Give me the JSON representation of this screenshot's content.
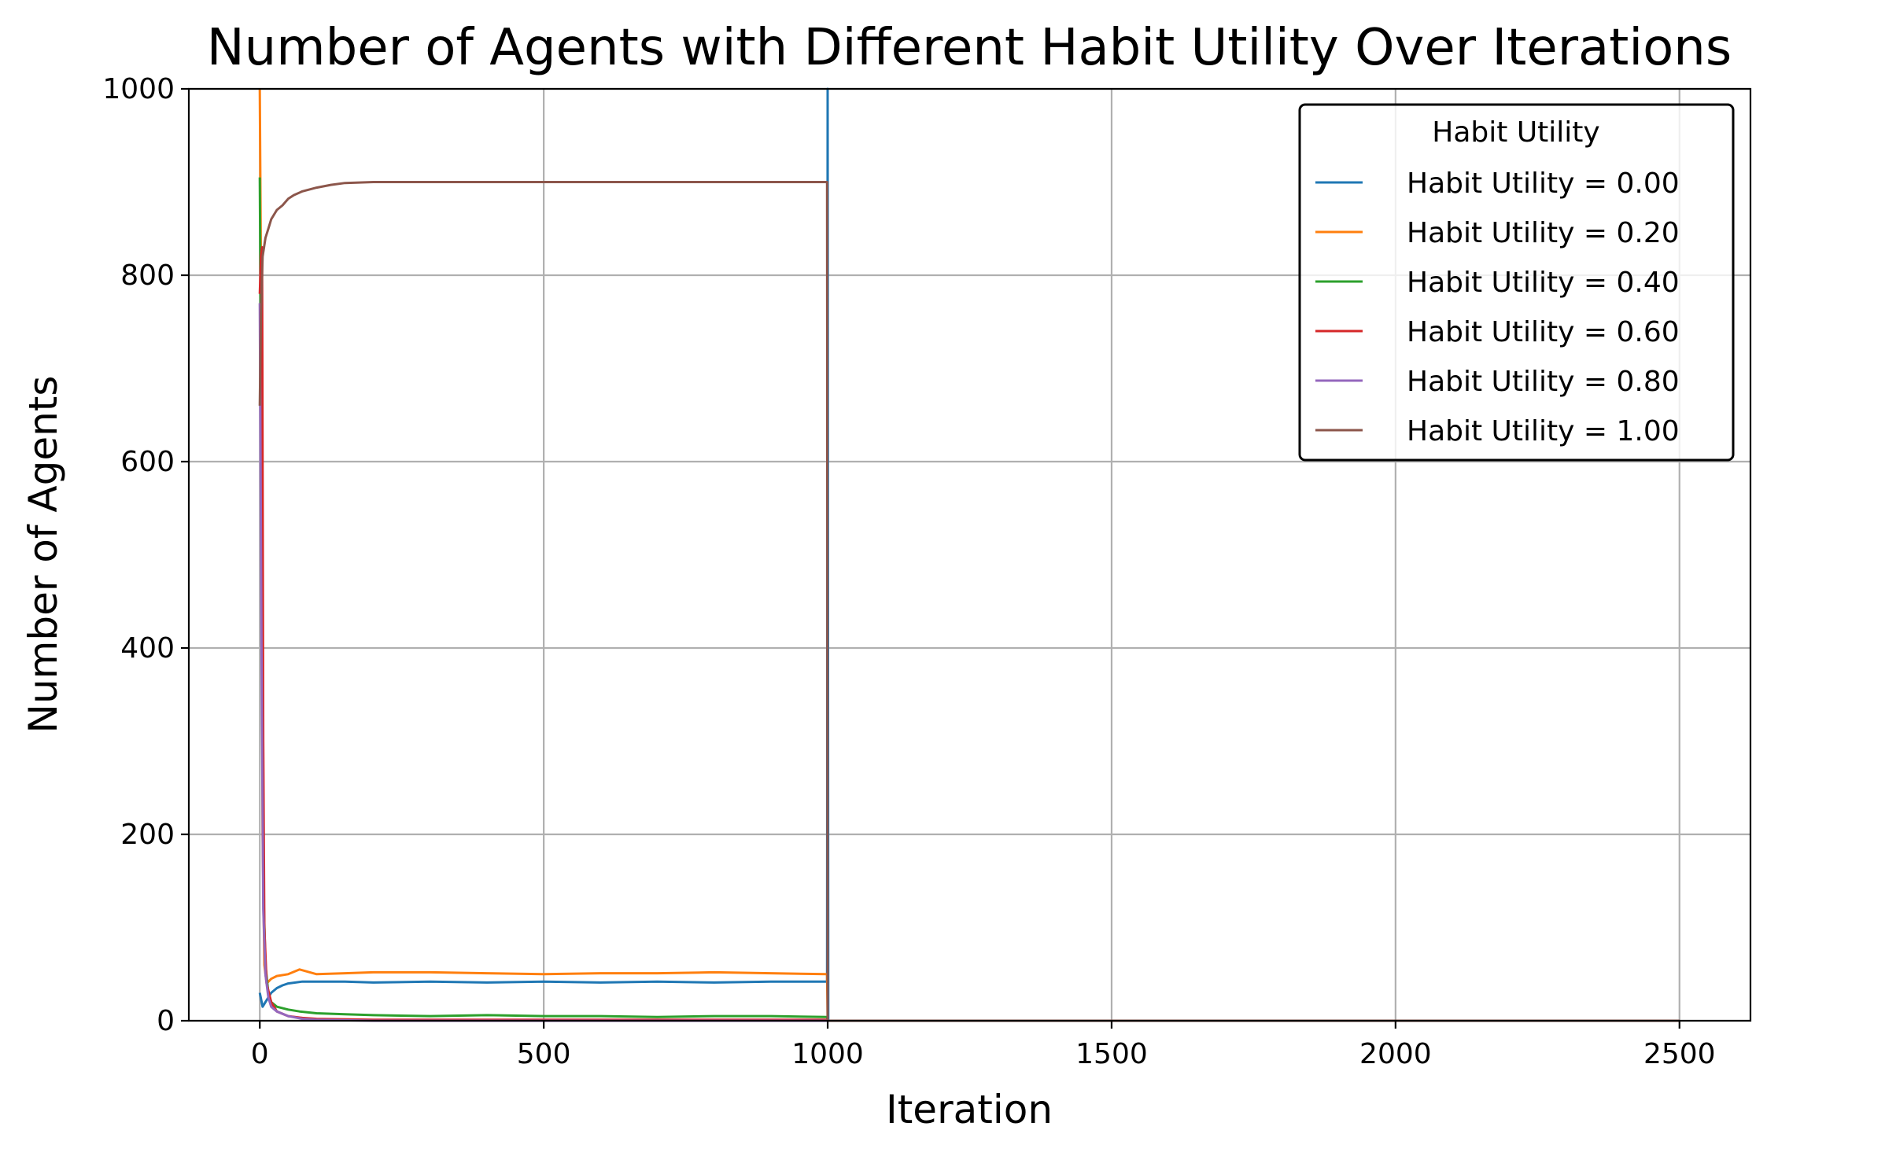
{
  "chart_data": {
    "type": "line",
    "title": "Number of Agents with Different Habit Utility Over Iterations",
    "xlabel": "Iteration",
    "ylabel": "Number of Agents",
    "xlim": [
      -125,
      2625
    ],
    "ylim": [
      0,
      1000
    ],
    "xticks": [
      0,
      500,
      1000,
      1500,
      2000,
      2500
    ],
    "yticks": [
      0,
      200,
      400,
      600,
      800,
      1000
    ],
    "grid": true,
    "legend": {
      "title": "Habit Utility",
      "position": "top-right"
    },
    "series": [
      {
        "name": "Habit Utility = 0.00",
        "color": "#1f77b4",
        "points": [
          [
            0,
            30
          ],
          [
            5,
            15
          ],
          [
            10,
            20
          ],
          [
            20,
            30
          ],
          [
            30,
            35
          ],
          [
            40,
            38
          ],
          [
            50,
            40
          ],
          [
            75,
            42
          ],
          [
            100,
            42
          ],
          [
            150,
            42
          ],
          [
            200,
            41
          ],
          [
            300,
            42
          ],
          [
            400,
            41
          ],
          [
            500,
            42
          ],
          [
            600,
            41
          ],
          [
            700,
            42
          ],
          [
            800,
            41
          ],
          [
            900,
            42
          ],
          [
            999,
            42
          ],
          [
            1000,
            1000
          ],
          [
            1001,
            0
          ],
          [
            2500,
            0
          ]
        ]
      },
      {
        "name": "Habit Utility = 0.20",
        "color": "#ff7f0e",
        "points": [
          [
            0,
            1000
          ],
          [
            2,
            800
          ],
          [
            5,
            200
          ],
          [
            8,
            60
          ],
          [
            12,
            40
          ],
          [
            20,
            45
          ],
          [
            30,
            48
          ],
          [
            50,
            50
          ],
          [
            70,
            55
          ],
          [
            100,
            50
          ],
          [
            150,
            51
          ],
          [
            200,
            52
          ],
          [
            300,
            52
          ],
          [
            400,
            51
          ],
          [
            500,
            50
          ],
          [
            600,
            51
          ],
          [
            700,
            51
          ],
          [
            800,
            52
          ],
          [
            900,
            51
          ],
          [
            999,
            50
          ],
          [
            1000,
            0
          ],
          [
            2500,
            0
          ]
        ]
      },
      {
        "name": "Habit Utility = 0.40",
        "color": "#2ca02c",
        "points": [
          [
            0,
            905
          ],
          [
            3,
            600
          ],
          [
            6,
            150
          ],
          [
            10,
            60
          ],
          [
            15,
            30
          ],
          [
            20,
            20
          ],
          [
            30,
            15
          ],
          [
            50,
            12
          ],
          [
            70,
            10
          ],
          [
            100,
            8
          ],
          [
            150,
            7
          ],
          [
            200,
            6
          ],
          [
            300,
            5
          ],
          [
            400,
            6
          ],
          [
            500,
            5
          ],
          [
            600,
            5
          ],
          [
            700,
            4
          ],
          [
            800,
            5
          ],
          [
            900,
            5
          ],
          [
            999,
            4
          ],
          [
            1000,
            0
          ],
          [
            2500,
            0
          ]
        ]
      },
      {
        "name": "Habit Utility = 0.60",
        "color": "#d62728",
        "points": [
          [
            0,
            780
          ],
          [
            2,
            820
          ],
          [
            4,
            830
          ],
          [
            6,
            300
          ],
          [
            8,
            100
          ],
          [
            12,
            40
          ],
          [
            20,
            20
          ],
          [
            30,
            10
          ],
          [
            50,
            5
          ],
          [
            75,
            3
          ],
          [
            100,
            2
          ],
          [
            200,
            1
          ],
          [
            400,
            1
          ],
          [
            600,
            1
          ],
          [
            800,
            1
          ],
          [
            999,
            1
          ],
          [
            1000,
            0
          ],
          [
            2500,
            0
          ]
        ]
      },
      {
        "name": "Habit Utility = 0.80",
        "color": "#9467bd",
        "points": [
          [
            0,
            770
          ],
          [
            3,
            400
          ],
          [
            6,
            120
          ],
          [
            10,
            50
          ],
          [
            15,
            25
          ],
          [
            20,
            15
          ],
          [
            30,
            10
          ],
          [
            50,
            5
          ],
          [
            75,
            2
          ],
          [
            100,
            1
          ],
          [
            200,
            0
          ],
          [
            400,
            0
          ],
          [
            600,
            0
          ],
          [
            800,
            0
          ],
          [
            999,
            0
          ],
          [
            1000,
            0
          ],
          [
            2500,
            0
          ]
        ]
      },
      {
        "name": "Habit Utility = 1.00",
        "color": "#8c564b",
        "points": [
          [
            0,
            660
          ],
          [
            2,
            760
          ],
          [
            5,
            820
          ],
          [
            10,
            840
          ],
          [
            15,
            850
          ],
          [
            20,
            860
          ],
          [
            30,
            870
          ],
          [
            40,
            875
          ],
          [
            50,
            882
          ],
          [
            60,
            886
          ],
          [
            75,
            890
          ],
          [
            100,
            894
          ],
          [
            125,
            897
          ],
          [
            150,
            899
          ],
          [
            200,
            900
          ],
          [
            300,
            900
          ],
          [
            400,
            900
          ],
          [
            500,
            900
          ],
          [
            600,
            900
          ],
          [
            700,
            900
          ],
          [
            800,
            900
          ],
          [
            900,
            900
          ],
          [
            999,
            900
          ],
          [
            1000,
            0
          ],
          [
            2500,
            0
          ]
        ]
      }
    ]
  }
}
